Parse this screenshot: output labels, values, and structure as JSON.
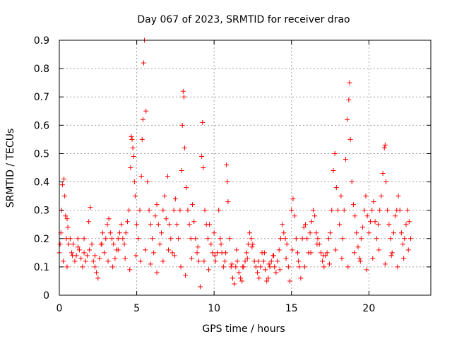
{
  "chart_data": {
    "type": "scatter",
    "title": "Day 067 of 2023, SRMTID for receiver drao",
    "xlabel": "GPS time / hours",
    "ylabel": "SRMTID / TECUs",
    "xlim": [
      0,
      24
    ],
    "ylim": [
      0,
      0.9
    ],
    "xticks": [
      0,
      5,
      10,
      15,
      20
    ],
    "xtick_labels": [
      "0",
      "5",
      "10",
      "15",
      "20"
    ],
    "yticks": [
      0,
      0.1,
      0.2,
      0.3,
      0.4,
      0.5,
      0.6,
      0.7,
      0.8,
      0.9
    ],
    "ytick_labels": [
      "0",
      "0.1",
      "0.2",
      "0.3",
      "0.4",
      "0.5",
      "0.6",
      "0.7",
      "0.8",
      "0.9"
    ],
    "grid": true,
    "marker": "+",
    "color": "#ff0000",
    "series": [
      {
        "name": "SRMTID",
        "x": [
          0.0,
          0.1,
          0.15,
          0.2,
          0.3,
          0.35,
          0.4,
          0.45,
          0.5,
          0.55,
          0.6,
          0.7,
          0.8,
          0.9,
          1.0,
          1.1,
          1.2,
          1.3,
          1.4,
          1.5,
          1.6,
          1.7,
          1.8,
          1.9,
          2.0,
          2.1,
          2.2,
          2.3,
          2.4,
          2.5,
          2.6,
          2.7,
          2.8,
          2.9,
          3.0,
          3.1,
          3.2,
          3.3,
          3.4,
          3.5,
          3.6,
          3.7,
          3.8,
          3.9,
          4.0,
          4.1,
          4.2,
          4.3,
          4.4,
          4.5,
          4.6,
          4.65,
          4.7,
          4.75,
          4.8,
          4.85,
          4.9,
          5.0,
          5.1,
          5.2,
          5.3,
          5.35,
          5.4,
          5.45,
          5.5,
          5.6,
          5.7,
          5.8,
          5.9,
          6.0,
          6.1,
          6.2,
          6.3,
          6.4,
          6.5,
          6.6,
          6.7,
          6.8,
          6.9,
          7.0,
          7.1,
          7.2,
          7.3,
          7.4,
          7.5,
          7.6,
          7.7,
          7.8,
          7.9,
          7.95,
          8.0,
          8.05,
          8.1,
          8.2,
          8.3,
          8.4,
          8.5,
          8.6,
          8.7,
          8.8,
          8.9,
          9.0,
          9.1,
          9.2,
          9.25,
          9.3,
          9.4,
          9.5,
          9.6,
          9.7,
          9.8,
          9.9,
          10.0,
          10.1,
          10.2,
          10.3,
          10.4,
          10.5,
          10.6,
          10.7,
          10.8,
          10.85,
          10.9,
          11.0,
          11.1,
          11.2,
          11.3,
          11.4,
          11.5,
          11.6,
          11.7,
          11.8,
          11.9,
          12.0,
          12.1,
          12.2,
          12.3,
          12.4,
          12.5,
          12.6,
          12.7,
          12.8,
          12.9,
          13.0,
          13.1,
          13.2,
          13.3,
          13.4,
          13.5,
          13.6,
          13.7,
          13.8,
          13.9,
          14.0,
          14.1,
          14.2,
          14.3,
          14.4,
          14.5,
          14.6,
          14.7,
          14.8,
          14.9,
          15.0,
          15.1,
          15.2,
          15.3,
          15.4,
          15.5,
          15.6,
          15.7,
          15.8,
          15.9,
          16.0,
          16.1,
          16.2,
          16.3,
          16.4,
          16.5,
          16.6,
          16.7,
          16.8,
          16.9,
          17.0,
          17.1,
          17.2,
          17.3,
          17.4,
          17.5,
          17.6,
          17.7,
          17.8,
          17.9,
          18.0,
          18.1,
          18.2,
          18.3,
          18.4,
          18.5,
          18.6,
          18.7,
          18.75,
          18.8,
          18.9,
          19.0,
          19.1,
          19.2,
          19.3,
          19.4,
          19.5,
          19.6,
          19.7,
          19.8,
          19.9,
          20.0,
          20.1,
          20.2,
          20.3,
          20.4,
          20.5,
          20.6,
          20.7,
          20.8,
          20.9,
          21.0,
          21.05,
          21.1,
          21.2,
          21.3,
          21.4,
          21.5,
          21.6,
          21.7,
          21.8,
          21.9,
          22.0,
          22.1,
          22.2,
          22.3,
          22.4,
          22.5,
          22.6,
          22.7,
          0.05,
          0.25,
          0.5,
          0.85,
          1.2,
          1.6,
          1.95,
          2.3,
          2.75,
          3.15,
          3.45,
          3.8,
          4.25,
          4.55,
          4.95,
          5.25,
          5.55,
          5.9,
          6.3,
          6.7,
          7.05,
          7.45,
          7.85,
          8.15,
          8.55,
          8.95,
          9.35,
          9.65,
          10.05,
          10.45,
          10.75,
          11.15,
          11.45,
          11.85,
          12.15,
          12.45,
          12.85,
          13.25,
          13.55,
          13.85,
          14.25,
          14.65,
          15.05,
          15.45,
          15.85,
          16.25,
          16.65,
          17.05,
          17.45,
          17.85,
          18.25,
          18.65,
          19.05,
          19.45,
          19.85,
          20.25,
          20.65,
          21.05,
          21.45,
          21.85,
          22.25,
          22.55
        ],
        "y": [
          0.15,
          0.22,
          0.3,
          0.39,
          0.41,
          0.35,
          0.28,
          0.2,
          0.27,
          0.24,
          0.18,
          0.2,
          0.15,
          0.18,
          0.12,
          0.14,
          0.2,
          0.16,
          0.13,
          0.1,
          0.15,
          0.12,
          0.14,
          0.26,
          0.31,
          0.18,
          0.12,
          0.1,
          0.08,
          0.06,
          0.13,
          0.18,
          0.22,
          0.15,
          0.2,
          0.25,
          0.27,
          0.22,
          0.2,
          0.18,
          0.13,
          0.16,
          0.2,
          0.22,
          0.25,
          0.2,
          0.18,
          0.22,
          0.26,
          0.3,
          0.45,
          0.56,
          0.55,
          0.52,
          0.49,
          0.4,
          0.35,
          0.25,
          0.2,
          0.3,
          0.42,
          0.55,
          0.62,
          0.82,
          0.9,
          0.65,
          0.4,
          0.3,
          0.25,
          0.2,
          0.15,
          0.28,
          0.32,
          0.25,
          0.18,
          0.22,
          0.3,
          0.35,
          0.27,
          0.42,
          0.25,
          0.2,
          0.15,
          0.3,
          0.34,
          0.25,
          0.2,
          0.3,
          0.44,
          0.6,
          0.72,
          0.7,
          0.52,
          0.38,
          0.3,
          0.25,
          0.2,
          0.32,
          0.26,
          0.2,
          0.15,
          0.12,
          0.03,
          0.49,
          0.61,
          0.45,
          0.3,
          0.25,
          0.2,
          0.25,
          0.18,
          0.15,
          0.22,
          0.12,
          0.15,
          0.3,
          0.2,
          0.15,
          0.1,
          0.12,
          0.46,
          0.4,
          0.33,
          0.2,
          0.1,
          0.06,
          0.04,
          0.1,
          0.12,
          0.08,
          0.06,
          0.05,
          0.1,
          0.12,
          0.15,
          0.18,
          0.22,
          0.2,
          0.18,
          0.12,
          0.1,
          0.08,
          0.06,
          0.1,
          0.15,
          0.12,
          0.09,
          0.05,
          0.06,
          0.1,
          0.12,
          0.14,
          0.1,
          0.08,
          0.12,
          0.16,
          0.2,
          0.25,
          0.22,
          0.2,
          0.18,
          0.1,
          0.05,
          0.3,
          0.34,
          0.28,
          0.2,
          0.15,
          0.1,
          0.06,
          0.2,
          0.24,
          0.25,
          0.2,
          0.15,
          0.22,
          0.26,
          0.3,
          0.28,
          0.22,
          0.2,
          0.18,
          0.15,
          0.12,
          0.1,
          0.14,
          0.15,
          0.2,
          0.22,
          0.3,
          0.44,
          0.5,
          0.38,
          0.3,
          0.25,
          0.35,
          0.2,
          0.3,
          0.48,
          0.62,
          0.69,
          0.75,
          0.55,
          0.4,
          0.32,
          0.28,
          0.22,
          0.17,
          0.13,
          0.2,
          0.24,
          0.3,
          0.35,
          0.28,
          0.22,
          0.26,
          0.3,
          0.33,
          0.26,
          0.2,
          0.25,
          0.3,
          0.35,
          0.43,
          0.52,
          0.53,
          0.4,
          0.3,
          0.25,
          0.2,
          0.15,
          0.22,
          0.28,
          0.3,
          0.35,
          0.3,
          0.22,
          0.18,
          0.2,
          0.25,
          0.3,
          0.26,
          0.2,
          0.18,
          0.12,
          0.1,
          0.14,
          0.17,
          0.2,
          0.16,
          0.14,
          0.18,
          0.12,
          0.1,
          0.16,
          0.13,
          0.09,
          0.14,
          0.12,
          0.16,
          0.11,
          0.08,
          0.12,
          0.16,
          0.14,
          0.1,
          0.07,
          0.13,
          0.17,
          0.12,
          0.09,
          0.14,
          0.18,
          0.15,
          0.11,
          0.16,
          0.1,
          0.13,
          0.17,
          0.12,
          0.15,
          0.11,
          0.14,
          0.09,
          0.13,
          0.16,
          0.12,
          0.1,
          0.15,
          0.18,
          0.14,
          0.11,
          0.16,
          0.13,
          0.1,
          0.15,
          0.12,
          0.09,
          0.13,
          0.16,
          0.11,
          0.14,
          0.1,
          0.13,
          0.16
        ]
      }
    ]
  }
}
